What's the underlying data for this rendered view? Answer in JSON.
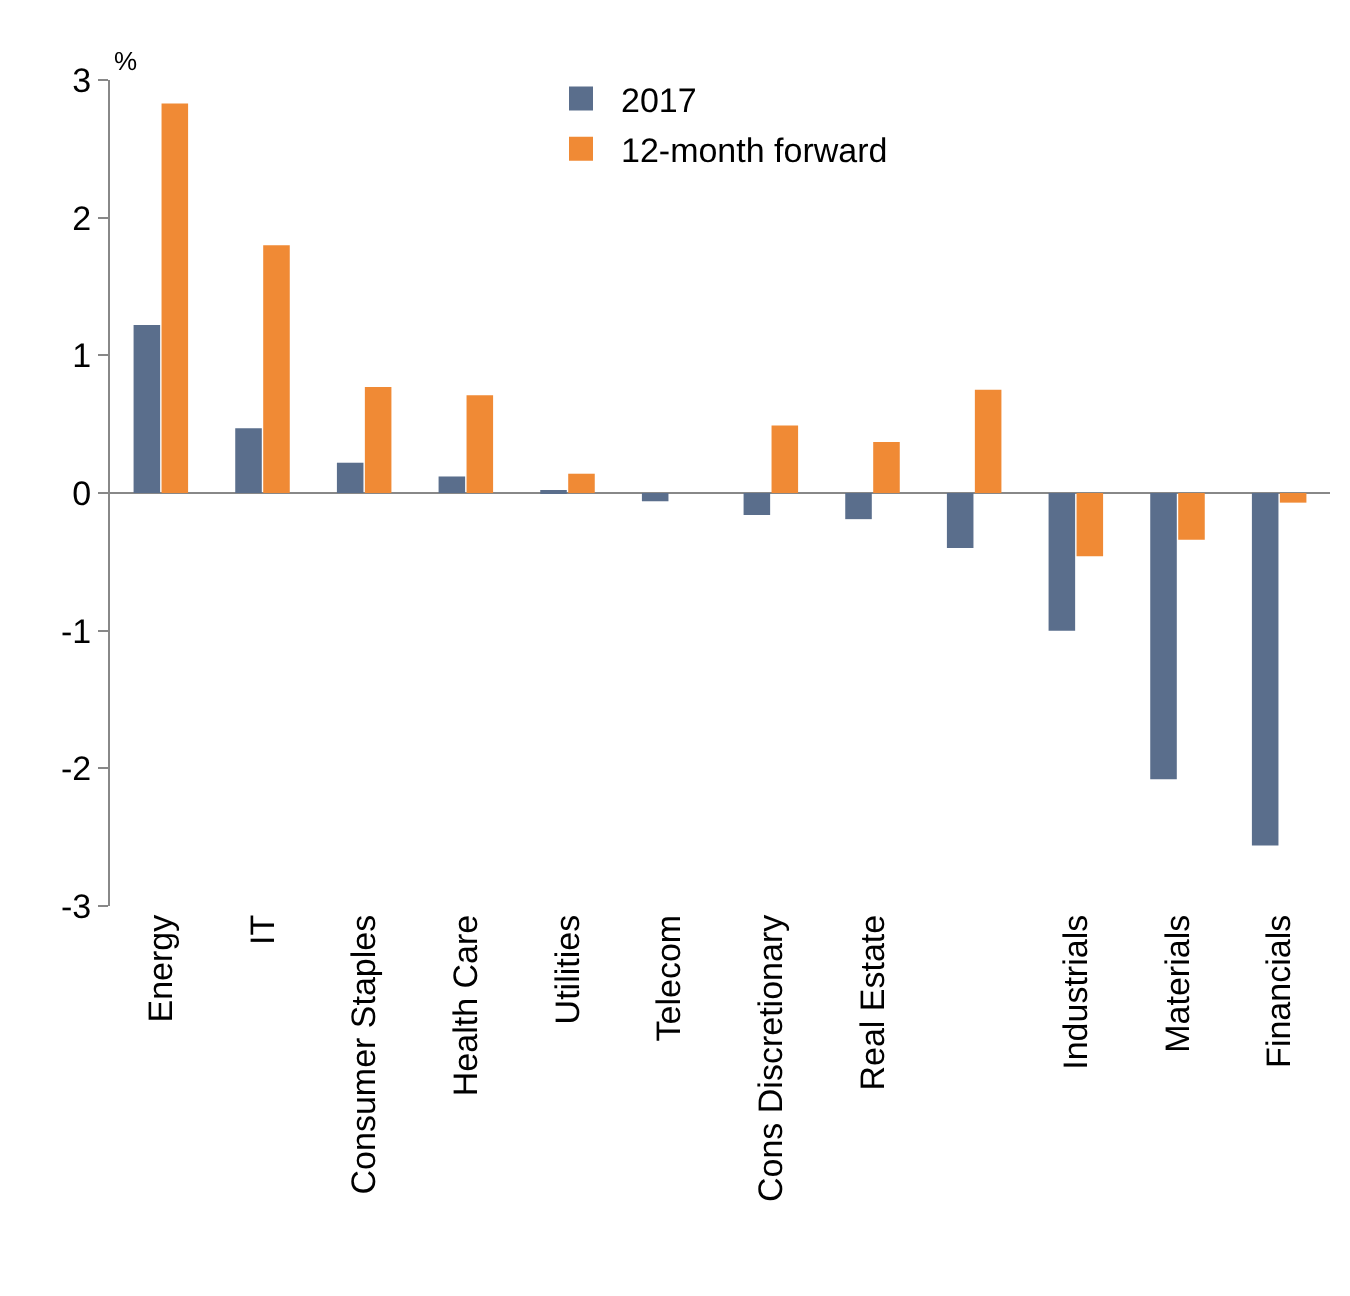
{
  "chart_data": {
    "type": "bar",
    "ylabel": "%",
    "categories": [
      "Energy",
      "IT",
      "Consumer Staples",
      "Health Care",
      "Utilities",
      "Telecom",
      "Cons Discretionary",
      "Real Estate",
      null,
      "Industrials",
      "Materials",
      "Financials"
    ],
    "series": [
      {
        "name": "2017",
        "color": "#5a6e8c",
        "values": [
          1.22,
          0.47,
          0.22,
          0.12,
          0.01,
          -0.06,
          -0.16,
          -0.19,
          -0.4,
          -1.0,
          -2.08,
          -2.56
        ]
      },
      {
        "name": "12-month forward",
        "color": "#f08a35",
        "values": [
          2.83,
          1.8,
          0.77,
          0.71,
          0.14,
          0.0,
          0.49,
          0.37,
          0.75,
          -0.46,
          -0.34,
          -0.07
        ]
      }
    ],
    "ref_lines": [
      {
        "axis": "y",
        "value": 0,
        "color": "#888888"
      }
    ],
    "ylim": [
      -3,
      3
    ],
    "yticks": [
      -3,
      -2,
      -1,
      0,
      1,
      2,
      3
    ],
    "grid": false,
    "legend": "top"
  }
}
